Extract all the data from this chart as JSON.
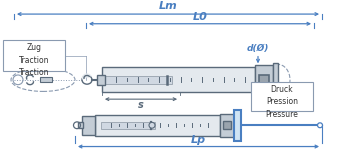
{
  "bg_color": "#ffffff",
  "blue": "#4a7fc1",
  "gray": "#8a9ab0",
  "dark_gray": "#5a6a7a",
  "mid_gray": "#a0aab5",
  "light_gray": "#dde3ea",
  "body_fill": "#e4e9ee",
  "rod_fill": "#d0d8e2",
  "cap_fill": "#c4cdd6",
  "nut_fill": "#9aa4ae",
  "text_color": "#333333",
  "lm_label": "Lm",
  "l0_label": "L0",
  "d_label": "d(Ø)",
  "s_label": "s",
  "lp_label": "Lp",
  "zug_text": "Zug\nTraction\nTraction",
  "druck_text": "Druck\nPression\nPressure",
  "fig_width": 3.39,
  "fig_height": 1.62,
  "dpi": 100
}
